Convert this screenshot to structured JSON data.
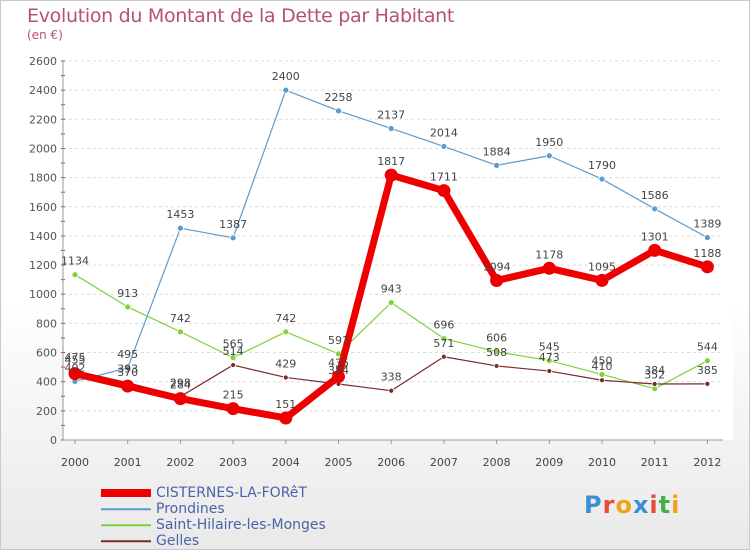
{
  "header": {
    "title": "Evolution du Montant de la Dette par Habitant",
    "subtitle": "(en €)"
  },
  "logo": {
    "text": "Proxiti",
    "colors": [
      "#3a8fd6",
      "#e94b3c",
      "#f2a31b",
      "#3a8fd6",
      "#e94b3c",
      "#45b04a",
      "#f2a31b"
    ]
  },
  "chart_data": {
    "type": "line",
    "title": "Evolution du Montant de la Dette par Habitant",
    "subtitle": "(en €)",
    "x": [
      "2000",
      "2001",
      "2002",
      "2003",
      "2004",
      "2005",
      "2006",
      "2007",
      "2008",
      "2009",
      "2010",
      "2011",
      "2012"
    ],
    "ylim": [
      0,
      2600
    ],
    "yticks": [
      0,
      200,
      400,
      600,
      800,
      1000,
      1200,
      1400,
      1600,
      1800,
      2000,
      2200,
      2400,
      2600
    ],
    "grid": "horizontal",
    "legend_position": "bottom-left",
    "series": [
      {
        "name": "CISTERNES-LA-FORêT",
        "color": "#ee0000",
        "values": [
          455,
          370,
          284,
          215,
          151,
          435,
          1817,
          1711,
          1094,
          1178,
          1095,
          1301,
          1188
        ],
        "labels": [
          "455",
          "370",
          "284",
          "215",
          "151",
          "435",
          "1817",
          "1711",
          "1094",
          "1178",
          "1095",
          "1301",
          "1188"
        ]
      },
      {
        "name": "Prondines",
        "color": "#5a9bd0",
        "values": [
          402,
          495,
          1453,
          1387,
          2400,
          2258,
          2137,
          2014,
          1884,
          1950,
          1790,
          1586,
          1389
        ],
        "labels": [
          "402",
          "495",
          "1453",
          "1387",
          "2400",
          "2258",
          "2137",
          "2014",
          "1884",
          "1950",
          "1790",
          "1586",
          "1389"
        ]
      },
      {
        "name": "Saint-Hilaire-les-Monges",
        "color": "#7ed23a",
        "values": [
          1134,
          913,
          742,
          565,
          742,
          591,
          943,
          696,
          606,
          545,
          450,
          352,
          544
        ],
        "labels": [
          "1134",
          "913",
          "742",
          "565",
          "742",
          "591",
          "943",
          "696",
          "606",
          "545",
          "450",
          "352",
          "544"
        ]
      },
      {
        "name": "Gelles",
        "color": "#7a2a2a",
        "values": [
          475,
          393,
          298,
          514,
          429,
          384,
          338,
          571,
          508,
          473,
          410,
          384,
          385
        ],
        "labels": [
          "475",
          "393",
          "298",
          "514",
          "429",
          "384",
          "338",
          "571",
          "508",
          "473",
          "410",
          "384",
          "385"
        ]
      }
    ]
  }
}
